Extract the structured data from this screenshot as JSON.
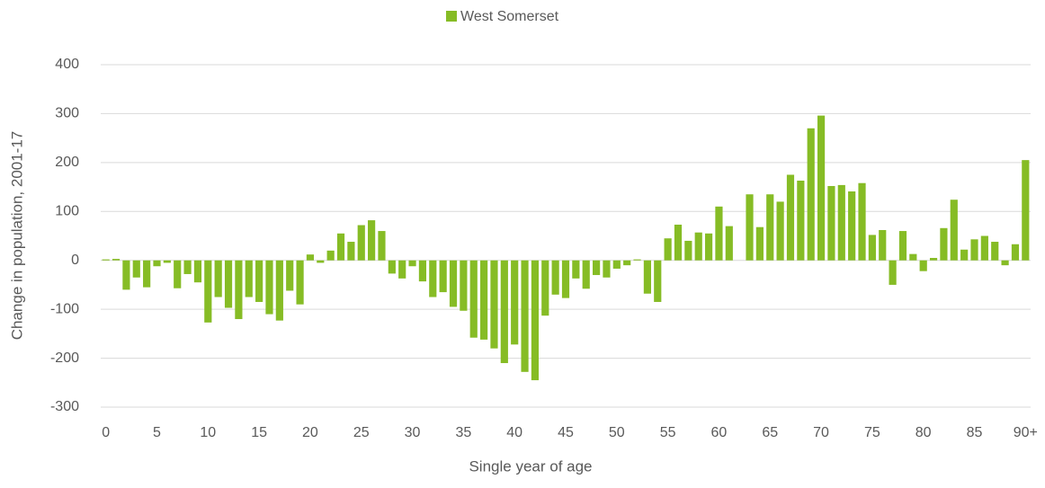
{
  "chart_data": {
    "type": "bar",
    "x_label": "Single year of age",
    "y_label": "Change in population, 2001-17",
    "categories": [
      "0",
      null,
      null,
      null,
      null,
      "5",
      null,
      null,
      null,
      null,
      "10",
      null,
      null,
      null,
      null,
      "15",
      null,
      null,
      null,
      null,
      "20",
      null,
      null,
      null,
      null,
      "25",
      null,
      null,
      null,
      null,
      "30",
      null,
      null,
      null,
      null,
      "35",
      null,
      null,
      null,
      null,
      "40",
      null,
      null,
      null,
      null,
      "45",
      null,
      null,
      null,
      null,
      "50",
      null,
      null,
      null,
      null,
      "55",
      null,
      null,
      null,
      null,
      "60",
      null,
      null,
      null,
      null,
      "65",
      null,
      null,
      null,
      null,
      "70",
      null,
      null,
      null,
      null,
      "75",
      null,
      null,
      null,
      null,
      "80",
      null,
      null,
      null,
      null,
      "85",
      null,
      null,
      null,
      null,
      "90+"
    ],
    "series": [
      {
        "name": "West Somerset",
        "color": "#86bc25",
        "values": [
          2,
          3,
          -60,
          -35,
          -55,
          -12,
          -5,
          -57,
          -28,
          -45,
          -127,
          -75,
          -97,
          -120,
          -75,
          -85,
          -110,
          -123,
          -62,
          -90,
          12,
          -5,
          20,
          55,
          38,
          72,
          82,
          60,
          -27,
          -37,
          -12,
          -43,
          -75,
          -65,
          -95,
          -103,
          -158,
          -162,
          -180,
          -210,
          -172,
          -228,
          -245,
          -113,
          -70,
          -77,
          -37,
          -58,
          -30,
          -35,
          -17,
          -10,
          2,
          -68,
          -85,
          45,
          73,
          40,
          57,
          55,
          110,
          70,
          0,
          135,
          68,
          135,
          120,
          175,
          163,
          270,
          296,
          152,
          154,
          141,
          158,
          52,
          62,
          -50,
          60,
          13,
          -22,
          5,
          66,
          124,
          22,
          43,
          50,
          38,
          -10,
          33,
          205
        ]
      }
    ],
    "ylim": [
      -300,
      400
    ],
    "yticks": [
      -300,
      -200,
      -100,
      0,
      100,
      200,
      300,
      400
    ],
    "grid": true,
    "legend": "top"
  }
}
